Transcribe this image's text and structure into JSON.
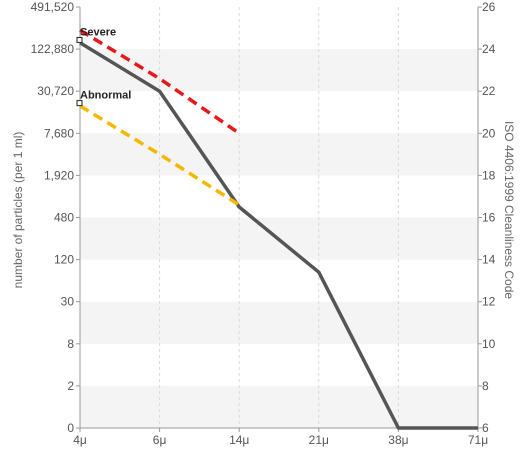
{
  "chart_data": {
    "type": "line",
    "title": "",
    "xlabel": "",
    "ylabel_left": "number of particles (per 1 ml)",
    "ylabel_right": "ISO 4406:1999 Cleanliness Code",
    "x_categories": [
      "4μ",
      "6μ",
      "14μ",
      "21μ",
      "38μ",
      "71μ"
    ],
    "left_ticks": [
      "491,520",
      "122,880",
      "30,720",
      "7,680",
      "1,920",
      "480",
      "120",
      "30",
      "8",
      "2",
      "0"
    ],
    "right_ticks": [
      "26",
      "24",
      "22",
      "20",
      "18",
      "16",
      "14",
      "12",
      "10",
      "8",
      "6"
    ],
    "right_range": [
      6,
      26
    ],
    "grid": true,
    "series": [
      {
        "name": "",
        "color": "#555555",
        "style": "solid",
        "x_index": [
          0,
          1,
          2,
          3,
          4,
          5
        ],
        "code": [
          24.3,
          22.0,
          16.5,
          13.4,
          6.0,
          6.0
        ]
      },
      {
        "name": "",
        "color": "#e8191b",
        "style": "dashed",
        "x_index": [
          0,
          1,
          2
        ],
        "code": [
          24.9,
          22.6,
          20.0
        ]
      },
      {
        "name": "",
        "color": "#f5b800",
        "style": "dashed",
        "x_index": [
          0,
          1,
          2
        ],
        "code": [
          21.3,
          19.0,
          16.6
        ]
      }
    ],
    "annotations": [
      {
        "text": "Severe",
        "x_index": 0,
        "code": 24.6
      },
      {
        "text": "Abnormal",
        "x_index": 0,
        "code": 21.6
      }
    ]
  }
}
